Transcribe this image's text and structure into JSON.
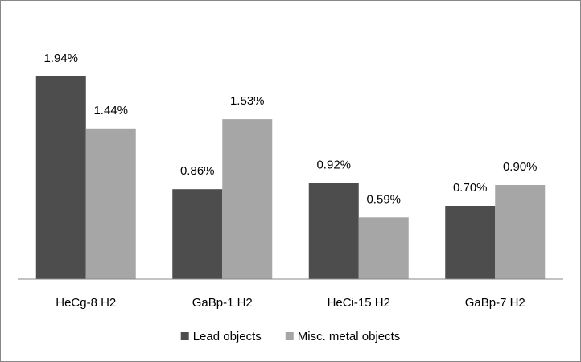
{
  "chart_data": {
    "type": "bar",
    "categories": [
      "HeCg-8 H2",
      "GaBp-1 H2",
      "HeCi-15 H2",
      "GaBp-7 H2"
    ],
    "series": [
      {
        "name": "Lead objects",
        "color": "#4d4d4d",
        "values": [
          1.94,
          0.86,
          0.92,
          0.7
        ],
        "value_labels": [
          "1.94%",
          "0.86%",
          "0.92%",
          "0.70%"
        ]
      },
      {
        "name": "Misc. metal objects",
        "color": "#a6a6a6",
        "values": [
          1.44,
          1.53,
          0.59,
          0.9
        ],
        "value_labels": [
          "1.44%",
          "1.53%",
          "0.59%",
          "0.90%"
        ]
      }
    ],
    "ylim": [
      0,
      2.5
    ],
    "legend": "bottom"
  }
}
